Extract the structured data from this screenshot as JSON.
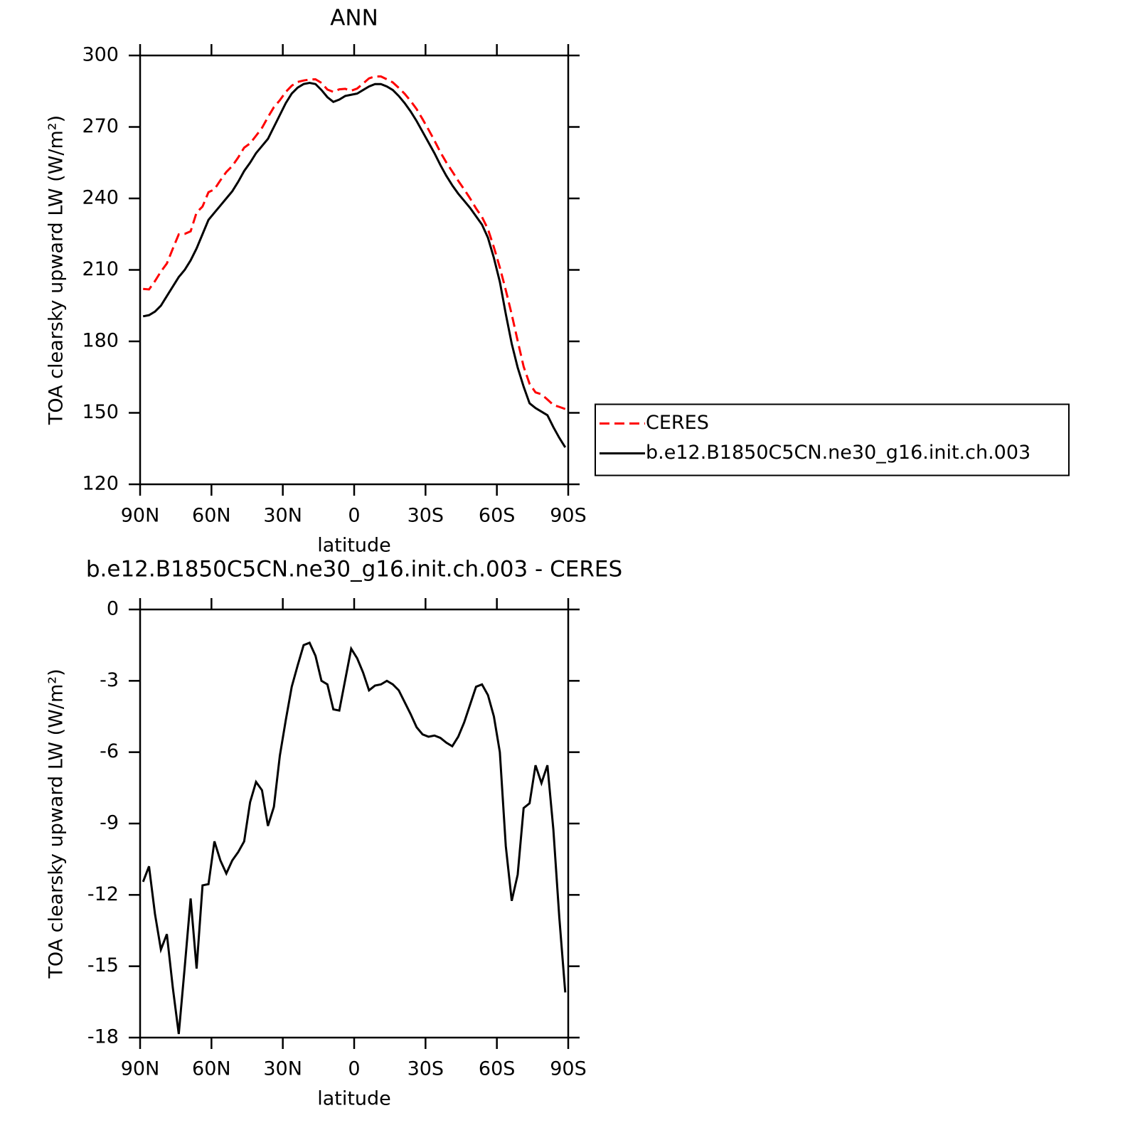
{
  "chart_data": [
    {
      "type": "line",
      "title": "ANN",
      "ylabel": "TOA clearsky upward LW (W/m²)",
      "xlabel": "latitude",
      "x": [
        88.75,
        86.25,
        83.75,
        81.25,
        78.75,
        76.25,
        73.75,
        71.25,
        68.75,
        66.25,
        63.75,
        61.25,
        58.75,
        56.25,
        53.75,
        51.25,
        48.75,
        46.25,
        43.75,
        41.25,
        38.75,
        36.25,
        33.75,
        31.25,
        28.75,
        26.25,
        23.75,
        21.25,
        18.75,
        16.25,
        13.75,
        11.25,
        8.75,
        6.25,
        3.75,
        1.25,
        -1.25,
        -3.75,
        -6.25,
        -8.75,
        -11.25,
        -13.75,
        -16.25,
        -18.75,
        -21.25,
        -23.75,
        -26.25,
        -28.75,
        -31.25,
        -33.75,
        -36.25,
        -38.75,
        -41.25,
        -43.75,
        -46.25,
        -48.75,
        -51.25,
        -53.75,
        -56.25,
        -58.75,
        -61.25,
        -63.75,
        -66.25,
        -68.75,
        -71.25,
        -73.75,
        -76.25,
        -78.75,
        -81.25,
        -83.75,
        -86.25,
        -88.75
      ],
      "xlim": [
        90,
        -90
      ],
      "xticks": [
        {
          "value": 90,
          "label": "90N"
        },
        {
          "value": 60,
          "label": "60N"
        },
        {
          "value": 30,
          "label": "30N"
        },
        0,
        {
          "value": -30,
          "label": "30S"
        },
        {
          "value": -60,
          "label": "60S"
        },
        {
          "value": -90,
          "label": "90S"
        }
      ],
      "ylim": [
        120,
        300
      ],
      "yticks": [
        120,
        150,
        180,
        210,
        240,
        270,
        300
      ],
      "legend": "right",
      "series": [
        {
          "name": "CERES",
          "color": "#ff0000",
          "style": "dashed",
          "values": [
            202.0,
            201.8,
            205.3,
            209.3,
            212.7,
            218.9,
            224.9,
            225.1,
            226.2,
            234.1,
            236.6,
            242.6,
            243.8,
            247.6,
            251.1,
            253.6,
            257.2,
            261.3,
            263.1,
            266.3,
            269.6,
            274.1,
            278.3,
            281.2,
            284.7,
            287.3,
            288.9,
            289.5,
            289.9,
            290.0,
            288.5,
            285.7,
            284.7,
            285.8,
            286.0,
            285.2,
            286.1,
            288.2,
            290.4,
            291.2,
            291.2,
            290.0,
            288.7,
            286.4,
            283.9,
            280.9,
            277.5,
            273.3,
            268.9,
            264.3,
            259.4,
            255.1,
            251.3,
            247.4,
            243.8,
            240.0,
            235.8,
            232.2,
            227.1,
            219.5,
            211.0,
            201.5,
            191.3,
            180.2,
            169.4,
            162.2,
            158.6,
            157.8,
            155.6,
            153.3,
            152.5,
            151.6
          ]
        },
        {
          "name": "b.e12.B1850C5CN.ne30_g16.init.ch.003",
          "color": "#000000",
          "style": "solid",
          "values": [
            190.5,
            191,
            192.5,
            195,
            199,
            203,
            207,
            210,
            214,
            219,
            225,
            231,
            234,
            237,
            240,
            243,
            247,
            251.5,
            255,
            259,
            262,
            265,
            270,
            275,
            280,
            284,
            286.5,
            288,
            288.5,
            288,
            285.5,
            282.5,
            280.5,
            281.5,
            283,
            283.5,
            284,
            285.5,
            287,
            288,
            288,
            287,
            285.5,
            283,
            280,
            276.5,
            272.5,
            268,
            263.5,
            259,
            254,
            249.5,
            245.5,
            242,
            239,
            236,
            232.5,
            229,
            223.5,
            215,
            205,
            191.5,
            179,
            169,
            161,
            154,
            152,
            150.5,
            149,
            144,
            139.5,
            135.5
          ]
        }
      ]
    },
    {
      "type": "line",
      "title": "b.e12.B1850C5CN.ne30_g16.init.ch.003 - CERES",
      "ylabel": "TOA clearsky upward LW (W/m²)",
      "xlabel": "latitude",
      "x": [
        88.75,
        86.25,
        83.75,
        81.25,
        78.75,
        76.25,
        73.75,
        71.25,
        68.75,
        66.25,
        63.75,
        61.25,
        58.75,
        56.25,
        53.75,
        51.25,
        48.75,
        46.25,
        43.75,
        41.25,
        38.75,
        36.25,
        33.75,
        31.25,
        28.75,
        26.25,
        23.75,
        21.25,
        18.75,
        16.25,
        13.75,
        11.25,
        8.75,
        6.25,
        3.75,
        1.25,
        -1.25,
        -3.75,
        -6.25,
        -8.75,
        -11.25,
        -13.75,
        -16.25,
        -18.75,
        -21.25,
        -23.75,
        -26.25,
        -28.75,
        -31.25,
        -33.75,
        -36.25,
        -38.75,
        -41.25,
        -43.75,
        -46.25,
        -48.75,
        -51.25,
        -53.75,
        -56.25,
        -58.75,
        -61.25,
        -63.75,
        -66.25,
        -68.75,
        -71.25,
        -73.75,
        -76.25,
        -78.75,
        -81.25,
        -83.75,
        -86.25,
        -88.75
      ],
      "xlim": [
        90,
        -90
      ],
      "xticks": [
        {
          "value": 90,
          "label": "90N"
        },
        {
          "value": 60,
          "label": "60N"
        },
        {
          "value": 30,
          "label": "30N"
        },
        0,
        {
          "value": -30,
          "label": "30S"
        },
        {
          "value": -60,
          "label": "60S"
        },
        {
          "value": -90,
          "label": "90S"
        }
      ],
      "ylim": [
        -18,
        0
      ],
      "yticks": [
        -18,
        -15,
        -12,
        -9,
        -6,
        -3,
        0
      ],
      "series": [
        {
          "color": "#000000",
          "style": "solid",
          "values": [
            -11.45,
            -10.8,
            -12.8,
            -14.3,
            -13.65,
            -15.9,
            -17.85,
            -15.05,
            -12.15,
            -15.1,
            -11.6,
            -11.55,
            -9.75,
            -10.55,
            -11.1,
            -10.55,
            -10.2,
            -9.75,
            -8.1,
            -7.25,
            -7.6,
            -9.1,
            -8.3,
            -6.15,
            -4.65,
            -3.25,
            -2.35,
            -1.5,
            -1.4,
            -1.95,
            -3.0,
            -3.15,
            -4.2,
            -4.25,
            -2.95,
            -1.65,
            -2.05,
            -2.65,
            -3.4,
            -3.2,
            -3.15,
            -3.0,
            -3.15,
            -3.4,
            -3.9,
            -4.4,
            -4.95,
            -5.25,
            -5.35,
            -5.3,
            -5.4,
            -5.6,
            -5.75,
            -5.35,
            -4.75,
            -4.0,
            -3.25,
            -3.15,
            -3.6,
            -4.5,
            -6.0,
            -9.95,
            -12.25,
            -11.15,
            -8.35,
            -8.15,
            -6.55,
            -7.3,
            -6.55,
            -9.25,
            -12.95,
            -16.1
          ]
        }
      ]
    }
  ]
}
